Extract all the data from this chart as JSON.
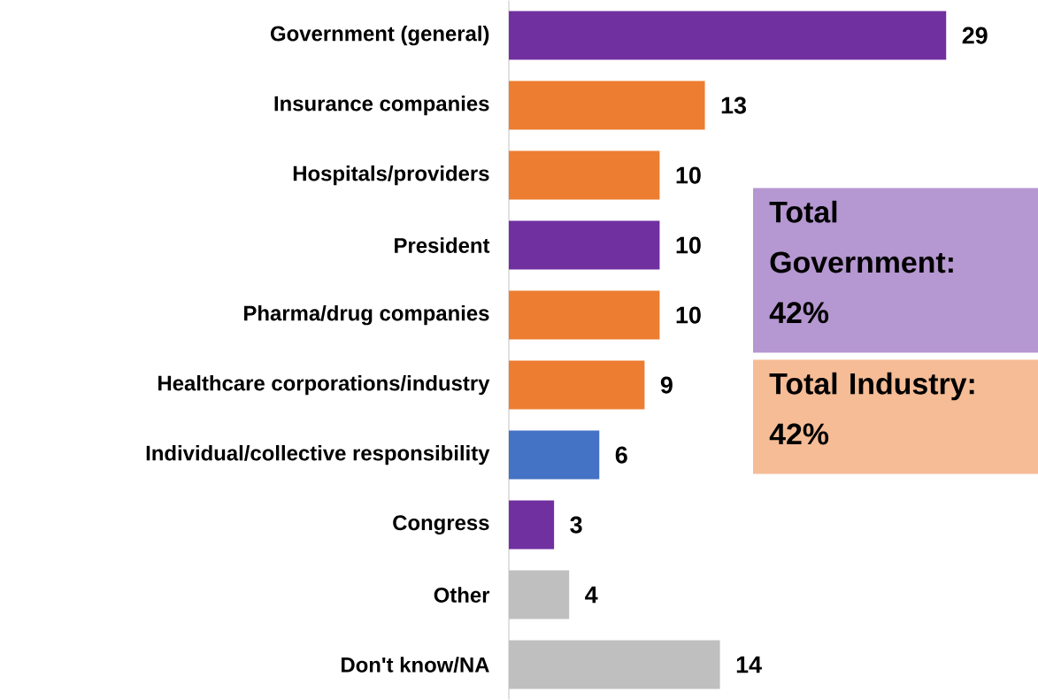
{
  "chart_data": {
    "type": "bar",
    "orientation": "horizontal",
    "categories": [
      "Government (general)",
      "Insurance companies",
      "Hospitals/providers",
      "President",
      "Pharma/drug companies",
      "Healthcare corporations/industry",
      "Individual/collective responsibility",
      "Congress",
      "Other",
      "Don't know/NA"
    ],
    "values": [
      29,
      13,
      10,
      10,
      10,
      9,
      6,
      3,
      4,
      14
    ],
    "colors": [
      "#7030a0",
      "#ed7d31",
      "#ed7d31",
      "#7030a0",
      "#ed7d31",
      "#ed7d31",
      "#4472c4",
      "#7030a0",
      "#bfbfbf",
      "#bfbfbf"
    ],
    "data_labels": true,
    "tick_labels": "y",
    "annotations": [
      "Total Government: 42%",
      "Total Industry: 42%"
    ]
  }
}
